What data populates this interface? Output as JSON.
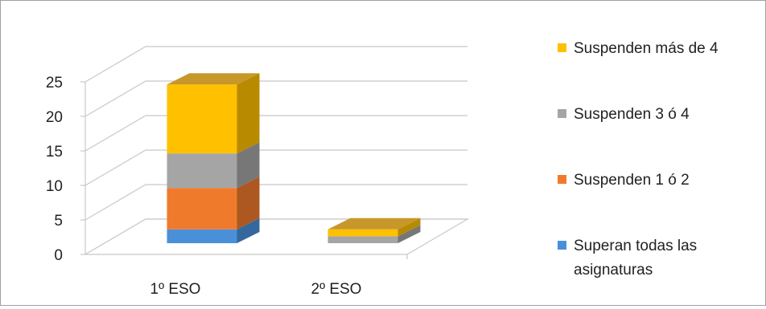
{
  "chart_data": {
    "type": "bar",
    "stacked": true,
    "three_d": true,
    "categories": [
      "1º ESO",
      "2º ESO"
    ],
    "series": [
      {
        "name": "Superan todas las asignaturas",
        "values": [
          2,
          0
        ],
        "color": "#4a90d9"
      },
      {
        "name": "Suspenden 1 ó 2",
        "values": [
          6,
          0
        ],
        "color": "#f07a2c"
      },
      {
        "name": "Suspenden 3 ó 4",
        "values": [
          5,
          1
        ],
        "color": "#a5a5a5"
      },
      {
        "name": "Suspenden más de 4",
        "values": [
          10,
          1
        ],
        "color": "#ffc000"
      }
    ],
    "ylim": [
      0,
      25
    ],
    "yticks": [
      "0",
      "5",
      "10",
      "15",
      "20",
      "25"
    ],
    "grid": true,
    "legend": "right",
    "title": "",
    "xlabel": "",
    "ylabel": ""
  }
}
